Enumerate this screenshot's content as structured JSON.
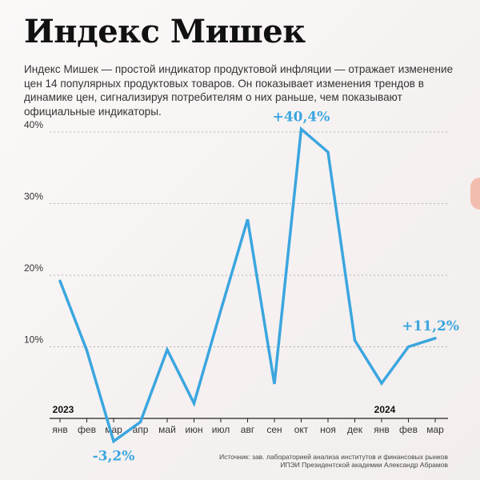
{
  "title": "Индекс Мишек",
  "subtitle": "Индекс Мишек — простой индикатор продуктовой инфляции — отражает изменение цен 14 популярных продуктовых товаров. Он показывает изменения трендов в динамике цен, сигнализируя потребителям о них раньше, чем показывают официальные индикаторы.",
  "source_line1": "Источник: зав. лабораторией анализа институтов и финансовых рынков",
  "source_line2": "ИПЭИ Президентской академии Александр Абрамов",
  "colors": {
    "line": "#3ba6df",
    "grid": "#9a9a9a",
    "axis": "#222222"
  },
  "chart_data": {
    "type": "line",
    "x": [
      "янв",
      "фев",
      "мар",
      "апр",
      "май",
      "июн",
      "июл",
      "авг",
      "сен",
      "окт",
      "ноя",
      "дек",
      "янв",
      "фев",
      "мар"
    ],
    "series": [
      {
        "values": [
          19.2,
          9.5,
          -3.2,
          -0.5,
          9.6,
          2.1,
          15.1,
          27.8,
          4.8,
          40.4,
          37.2,
          10.9,
          4.9,
          10.0,
          11.2
        ]
      }
    ],
    "ylim": [
      0,
      40
    ],
    "yticks": [
      10,
      20,
      30,
      40
    ],
    "ytick_labels": [
      "10%",
      "20%",
      "30%",
      "40%"
    ],
    "year_labels": [
      {
        "index": 0,
        "text": "2023"
      },
      {
        "index": 12,
        "text": "2024"
      }
    ],
    "annotations": [
      {
        "index": 2,
        "text": "-3,2%",
        "position": "below"
      },
      {
        "index": 9,
        "text": "+40,4%",
        "position": "above"
      },
      {
        "index": 14,
        "text": "+11,2%",
        "position": "above"
      }
    ],
    "grid": true
  }
}
